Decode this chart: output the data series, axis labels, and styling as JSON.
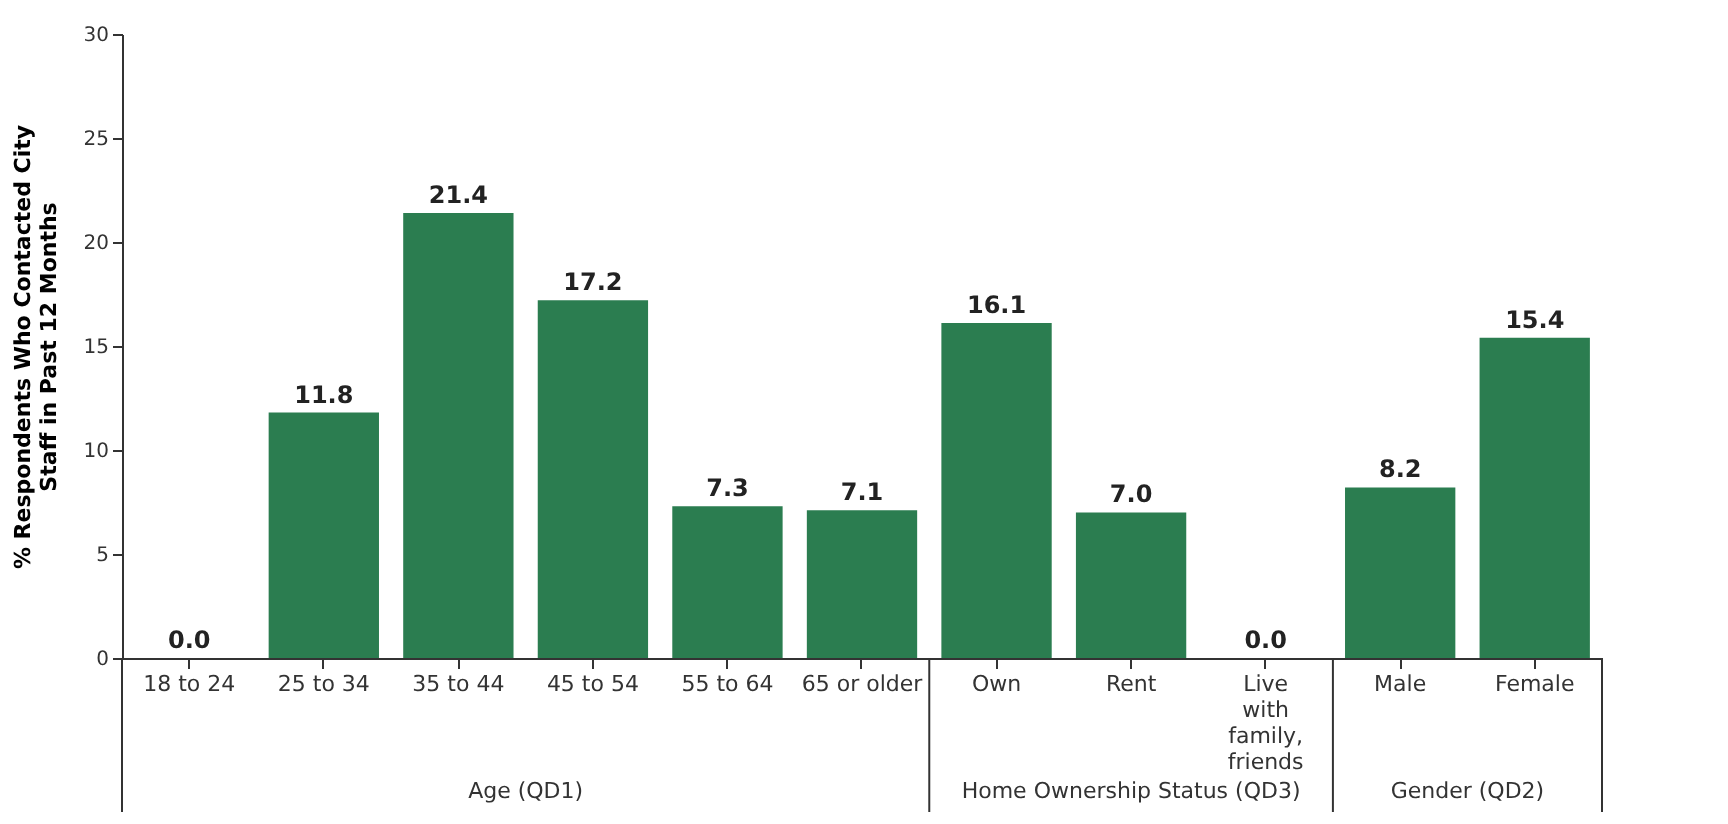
{
  "chart_data": {
    "type": "bar",
    "ylabel": "% Respondents Who Contacted City\nStaff in Past 12 Months",
    "categories": [
      "18 to 24",
      "25 to 34",
      "35 to 44",
      "45 to 54",
      "55 to 64",
      "65 or older",
      "Own",
      "Rent",
      "Live with family, friends",
      "Male",
      "Female"
    ],
    "values": [
      0.0,
      11.8,
      21.4,
      17.2,
      7.3,
      7.1,
      16.1,
      7.0,
      0.0,
      8.2,
      15.4
    ],
    "color": "#2b7d50",
    "ylim": [
      0,
      30
    ],
    "yticks": [
      0,
      5,
      10,
      15,
      20,
      25,
      30
    ],
    "grid": false,
    "value_labels": [
      "0.0",
      "11.8",
      "21.4",
      "17.2",
      "7.3",
      "7.1",
      "16.1",
      "7.0",
      "0.0",
      "8.2",
      "15.4"
    ],
    "annotations": [
      "Age (QD1)",
      "Home Ownership Status (QD3)",
      "Gender (QD2)"
    ]
  }
}
